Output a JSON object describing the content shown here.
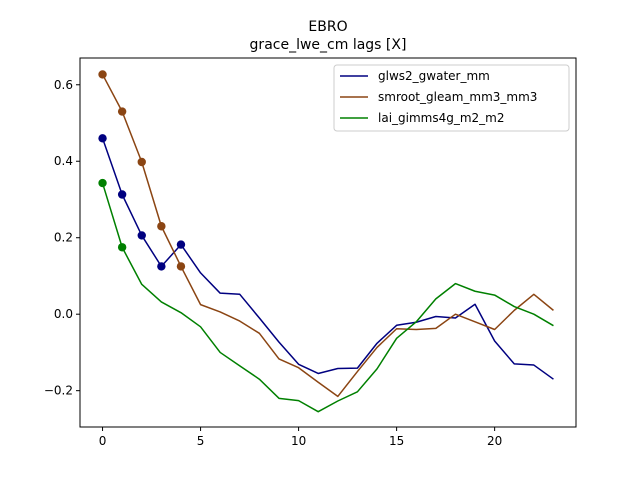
{
  "chart_data": {
    "type": "line",
    "title": "EBRO",
    "subtitle": "grace_lwe_cm lags [X]",
    "xlabel": "",
    "ylabel": "",
    "xlim": [
      -1.15,
      24.15
    ],
    "ylim": [
      -0.295,
      0.67
    ],
    "xticks": [
      0,
      5,
      10,
      15,
      20
    ],
    "xtick_labels": [
      "0",
      "5",
      "10",
      "15",
      "20"
    ],
    "yticks": [
      -0.2,
      0.0,
      0.2,
      0.4,
      0.6
    ],
    "ytick_labels": [
      "−0.2",
      "0.0",
      "0.2",
      "0.4",
      "0.6"
    ],
    "grid": false,
    "legend_position": "top-right",
    "series": [
      {
        "name": "glws2_gwater_mm",
        "color": "#000080",
        "x": [
          0,
          1,
          2,
          3,
          4,
          5,
          6,
          7,
          8,
          9,
          10,
          11,
          12,
          13,
          14,
          15,
          16,
          17,
          18,
          19,
          20,
          21,
          22,
          23
        ],
        "values": [
          0.46,
          0.313,
          0.206,
          0.125,
          0.182,
          0.108,
          0.055,
          0.052,
          -0.01,
          -0.073,
          -0.131,
          -0.155,
          -0.142,
          -0.141,
          -0.076,
          -0.029,
          -0.021,
          -0.006,
          -0.01,
          0.026,
          -0.07,
          -0.13,
          -0.133,
          -0.17
        ],
        "markers_x": [
          0,
          1,
          2,
          3,
          4
        ],
        "markers_values": [
          0.46,
          0.313,
          0.206,
          0.125,
          0.182
        ]
      },
      {
        "name": "smroot_gleam_mm3_mm3",
        "color": "#8B4513",
        "x": [
          0,
          1,
          2,
          3,
          4,
          5,
          6,
          7,
          8,
          9,
          10,
          11,
          12,
          13,
          14,
          15,
          16,
          17,
          18,
          19,
          20,
          21,
          22,
          23
        ],
        "values": [
          0.627,
          0.53,
          0.398,
          0.23,
          0.125,
          0.025,
          0.006,
          -0.018,
          -0.05,
          -0.117,
          -0.14,
          -0.178,
          -0.215,
          -0.15,
          -0.087,
          -0.038,
          -0.04,
          -0.037,
          0.0,
          -0.02,
          -0.04,
          0.01,
          0.052,
          0.01
        ],
        "markers_x": [
          0,
          1,
          2,
          3,
          4
        ],
        "markers_values": [
          0.627,
          0.53,
          0.398,
          0.23,
          0.125
        ]
      },
      {
        "name": "lai_gimms4g_m2_m2",
        "color": "#008000",
        "x": [
          0,
          1,
          2,
          3,
          4,
          5,
          6,
          7,
          8,
          9,
          10,
          11,
          12,
          13,
          14,
          15,
          16,
          17,
          18,
          19,
          20,
          21,
          22,
          23
        ],
        "values": [
          0.343,
          0.175,
          0.078,
          0.032,
          0.004,
          -0.033,
          -0.1,
          -0.135,
          -0.17,
          -0.22,
          -0.226,
          -0.255,
          -0.227,
          -0.203,
          -0.143,
          -0.063,
          -0.02,
          0.04,
          0.08,
          0.06,
          0.05,
          0.02,
          0.0,
          -0.03
        ],
        "markers_x": [
          0,
          1
        ],
        "markers_values": [
          0.343,
          0.175
        ]
      }
    ]
  }
}
